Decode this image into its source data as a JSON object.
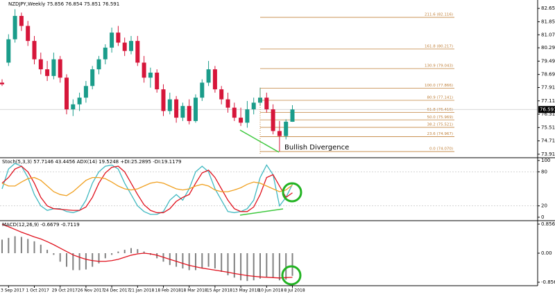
{
  "chart_data": [
    {
      "type": "candlestick",
      "title": "NZDJPY,Weekly  75.856 76.854 75.851 76.591",
      "categories": [
        null,
        "3 Sep 2017",
        null,
        null,
        null,
        "1 Oct 2017",
        null,
        null,
        null,
        "29 Oct 2017",
        null,
        null,
        null,
        "26 Nov 2017",
        null,
        null,
        null,
        "24 Dec 2017",
        null,
        null,
        null,
        "21 Jan 2018",
        null,
        null,
        null,
        "18 Feb 2018",
        null,
        null,
        null,
        "18 Mar 2018",
        null,
        null,
        null,
        "15 Apr 2018",
        null,
        null,
        null,
        "13 May 2018",
        null,
        null,
        null,
        "10 Jun 2018",
        null,
        null,
        null,
        "8 Jul 2018"
      ],
      "open": [
        78.2,
        79.4,
        80.8,
        82.2,
        81.6,
        80.7,
        79.6,
        79.0,
        78.6,
        79.6,
        78.5,
        76.6,
        76.9,
        77.3,
        78.0,
        79.0,
        79.6,
        80.3,
        81.2,
        80.6,
        80.1,
        80.7,
        79.4,
        78.5,
        78.8,
        77.8,
        76.5,
        77.2,
        76.1,
        76.8,
        75.9,
        77.3,
        78.2,
        79.0,
        77.8,
        77.2,
        76.7,
        76.1,
        75.8,
        76.6,
        77.0,
        77.3,
        76.6,
        75.3,
        75.0,
        75.856
      ],
      "high": [
        78.4,
        81.1,
        82.6,
        82.4,
        81.9,
        81.0,
        80.0,
        79.5,
        80.0,
        79.8,
        78.7,
        77.2,
        77.6,
        78.3,
        79.2,
        79.8,
        80.5,
        81.5,
        81.6,
        80.9,
        81.0,
        81.0,
        79.8,
        79.1,
        79.0,
        78.1,
        77.6,
        77.4,
        77.0,
        77.2,
        77.5,
        78.4,
        79.5,
        79.2,
        78.0,
        77.6,
        77.0,
        76.7,
        77.1,
        77.3,
        77.9,
        77.6,
        76.9,
        75.9,
        76.0,
        76.854
      ],
      "low": [
        78.0,
        79.2,
        80.6,
        81.3,
        80.4,
        79.3,
        78.7,
        78.3,
        78.4,
        78.2,
        76.3,
        76.2,
        76.5,
        77.0,
        77.8,
        78.7,
        79.3,
        80.0,
        80.4,
        79.8,
        79.9,
        79.2,
        78.2,
        77.9,
        77.6,
        76.2,
        76.3,
        75.8,
        75.9,
        75.7,
        75.8,
        77.1,
        78.0,
        77.6,
        76.9,
        76.4,
        75.9,
        75.6,
        75.5,
        76.3,
        76.8,
        76.4,
        75.1,
        74.07,
        74.8,
        75.851
      ],
      "close": [
        78.1,
        80.8,
        82.2,
        81.6,
        80.7,
        79.6,
        79.0,
        78.6,
        79.6,
        78.5,
        76.6,
        76.9,
        77.3,
        78.0,
        79.0,
        79.6,
        80.3,
        81.2,
        80.6,
        80.1,
        80.7,
        79.4,
        78.5,
        78.8,
        77.8,
        76.5,
        77.2,
        76.1,
        76.8,
        75.9,
        77.3,
        78.2,
        79.0,
        77.8,
        77.2,
        76.7,
        76.1,
        75.8,
        76.6,
        77.0,
        77.3,
        76.6,
        75.3,
        75.0,
        75.86,
        76.591
      ],
      "up_color": "#1a9c8a",
      "down_color": "#d6163a",
      "ylim": [
        73.7,
        83.03
      ],
      "yticks": [
        {
          "value": 82.65,
          "label": "82.650"
        },
        {
          "value": 81.85,
          "label": "81.850"
        },
        {
          "value": 81.07,
          "label": "81.070"
        },
        {
          "value": 80.29,
          "label": "80.290"
        },
        {
          "value": 79.49,
          "label": "79.490"
        },
        {
          "value": 78.69,
          "label": "78.690"
        },
        {
          "value": 77.91,
          "label": "77.910"
        },
        {
          "value": 77.11,
          "label": "77.110"
        },
        {
          "value": 76.31,
          "label": "76.310"
        },
        {
          "value": 75.51,
          "label": "75.510"
        },
        {
          "value": 74.71,
          "label": "74.710"
        },
        {
          "value": 73.91,
          "label": "73.910"
        }
      ],
      "current_price": {
        "value": 76.591,
        "label": "76.591"
      },
      "fibonacci": [
        {
          "value": 82.116,
          "label": "211.6 (82.116)"
        },
        {
          "value": 80.217,
          "label": "161.8 (80.217)"
        },
        {
          "value": 79.043,
          "label": "130.9 (79.043)"
        },
        {
          "value": 77.866,
          "label": "100.0 (77.866)"
        },
        {
          "value": 77.141,
          "label": "80.9 (77.141)"
        },
        {
          "value": 76.416,
          "label": "61.8 (76.416)"
        },
        {
          "value": 75.969,
          "label": "50.0 (75.969)"
        },
        {
          "value": 75.521,
          "label": "38.2 (75.521)"
        },
        {
          "value": 74.967,
          "label": "23.6 (74.967)"
        },
        {
          "value": 74.07,
          "label": "0.0 (74.070)"
        }
      ],
      "fib_color": "#c0803a",
      "annotation": "Bullish Divergence"
    },
    {
      "type": "line",
      "title": "Stoch(5,3,3) 57.7146 43.4456 ADX(14) 19.5248 +DI:25.2895 -DI:19.1179",
      "series": [
        {
          "color": "#3fb8c0",
          "values": [
            50,
            85,
            95,
            90,
            70,
            40,
            20,
            12,
            15,
            15,
            10,
            8,
            12,
            30,
            60,
            80,
            90,
            92,
            85,
            60,
            40,
            20,
            10,
            5,
            5,
            10,
            30,
            40,
            30,
            50,
            80,
            90,
            80,
            50,
            30,
            10,
            8,
            10,
            15,
            30,
            70,
            92,
            75,
            20,
            35,
            58
          ]
        },
        {
          "color": "#e0101c",
          "values": [
            60,
            70,
            85,
            90,
            80,
            60,
            35,
            20,
            15,
            14,
            13,
            12,
            12,
            18,
            35,
            60,
            78,
            88,
            90,
            80,
            60,
            40,
            22,
            12,
            8,
            8,
            15,
            28,
            35,
            40,
            60,
            78,
            83,
            70,
            50,
            30,
            15,
            10,
            10,
            18,
            40,
            70,
            75,
            55,
            35,
            43
          ]
        },
        {
          "color": "#f0a020",
          "values": [
            60,
            55,
            55,
            62,
            68,
            70,
            65,
            55,
            45,
            40,
            38,
            45,
            55,
            65,
            70,
            70,
            68,
            62,
            55,
            50,
            48,
            50,
            55,
            60,
            62,
            60,
            55,
            50,
            48,
            50,
            55,
            58,
            55,
            48,
            45,
            45,
            48,
            52,
            58,
            62,
            60,
            55,
            50,
            45,
            48,
            57
          ]
        }
      ],
      "ylim": [
        0,
        100
      ],
      "yticks": [
        100,
        80,
        20,
        0
      ]
    },
    {
      "type": "macd",
      "title": "MACD(12,26,9) -0.6679 -0.7119",
      "histogram": {
        "color": "#808080",
        "values": [
          0.4,
          0.45,
          0.5,
          0.48,
          0.42,
          0.35,
          0.25,
          0.1,
          -0.05,
          -0.25,
          -0.4,
          -0.5,
          -0.5,
          -0.48,
          -0.4,
          -0.3,
          -0.15,
          -0.05,
          0.05,
          0.1,
          0.15,
          0.12,
          0.05,
          -0.05,
          -0.15,
          -0.25,
          -0.35,
          -0.4,
          -0.45,
          -0.5,
          -0.5,
          -0.45,
          -0.4,
          -0.45,
          -0.55,
          -0.65,
          -0.72,
          -0.8,
          -0.82,
          -0.8,
          -0.75,
          -0.7,
          -0.72,
          -0.8,
          -0.78,
          -0.6679
        ]
      },
      "signal": {
        "color": "#e0101c",
        "values": [
          0.85,
          0.78,
          0.7,
          0.62,
          0.55,
          0.48,
          0.42,
          0.34,
          0.25,
          0.15,
          0.05,
          -0.05,
          -0.12,
          -0.18,
          -0.22,
          -0.24,
          -0.24,
          -0.22,
          -0.18,
          -0.12,
          -0.06,
          -0.02,
          0.0,
          -0.02,
          -0.06,
          -0.12,
          -0.18,
          -0.24,
          -0.3,
          -0.36,
          -0.4,
          -0.44,
          -0.47,
          -0.5,
          -0.53,
          -0.56,
          -0.6,
          -0.63,
          -0.66,
          -0.68,
          -0.7,
          -0.71,
          -0.72,
          -0.73,
          -0.72,
          -0.7119
        ]
      },
      "ylim": [
        -0.8566,
        0.8566
      ],
      "yticks": [
        0.8566,
        {
          "value": 0,
          "label": "0.00"
        },
        -0.8566
      ]
    }
  ]
}
